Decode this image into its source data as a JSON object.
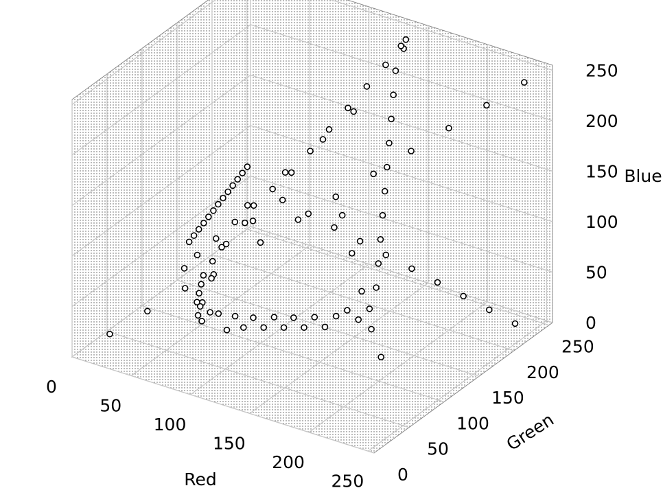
{
  "chart_data": {
    "type": "scatter",
    "projection": "3d",
    "title": "",
    "xlabel": "Red",
    "ylabel": "Green",
    "zlabel": "Blue",
    "xlim": [
      0,
      255
    ],
    "ylim": [
      0,
      255
    ],
    "zlim": [
      0,
      255
    ],
    "x_ticks": [
      "0",
      "50",
      "100",
      "150",
      "200",
      "250"
    ],
    "y_ticks": [
      "0",
      "50",
      "100",
      "150",
      "200",
      "250"
    ],
    "z_ticks": [
      "0",
      "50",
      "100",
      "150",
      "200",
      "250"
    ],
    "grid": true,
    "legend": "none",
    "colors": {
      "pane": "#f0f0f0",
      "grid": "#c8c8c8",
      "points": "#000000",
      "background": "#ffffff"
    },
    "series": [
      {
        "points": [
          [
            5,
            250,
            10
          ],
          [
            10,
            230,
            20
          ],
          [
            12,
            200,
            15
          ],
          [
            20,
            180,
            25
          ],
          [
            25,
            160,
            10
          ],
          [
            30,
            150,
            30
          ],
          [
            35,
            140,
            20
          ],
          [
            40,
            120,
            35
          ],
          [
            45,
            110,
            15
          ],
          [
            50,
            100,
            40
          ],
          [
            55,
            90,
            25
          ],
          [
            60,
            80,
            45
          ],
          [
            65,
            70,
            30
          ],
          [
            70,
            60,
            50
          ],
          [
            80,
            50,
            40
          ],
          [
            90,
            45,
            55
          ],
          [
            100,
            40,
            60
          ],
          [
            110,
            35,
            50
          ],
          [
            120,
            30,
            70
          ],
          [
            130,
            25,
            65
          ],
          [
            140,
            22,
            80
          ],
          [
            150,
            20,
            75
          ],
          [
            160,
            18,
            90
          ],
          [
            170,
            15,
            85
          ],
          [
            180,
            12,
            100
          ],
          [
            190,
            10,
            95
          ],
          [
            200,
            8,
            110
          ],
          [
            210,
            6,
            105
          ],
          [
            220,
            5,
            120
          ],
          [
            230,
            4,
            130
          ],
          [
            240,
            3,
            125
          ],
          [
            250,
            2,
            140
          ],
          [
            245,
            20,
            150
          ],
          [
            235,
            40,
            160
          ],
          [
            225,
            60,
            170
          ],
          [
            215,
            80,
            180
          ],
          [
            205,
            100,
            190
          ],
          [
            195,
            120,
            200
          ],
          [
            185,
            140,
            210
          ],
          [
            175,
            160,
            220
          ],
          [
            165,
            180,
            230
          ],
          [
            155,
            200,
            240
          ],
          [
            150,
            220,
            250
          ],
          [
            140,
            240,
            245
          ],
          [
            130,
            250,
            230
          ],
          [
            120,
            245,
            210
          ],
          [
            110,
            235,
            190
          ],
          [
            100,
            225,
            170
          ],
          [
            90,
            215,
            150
          ],
          [
            80,
            205,
            130
          ],
          [
            70,
            195,
            110
          ],
          [
            60,
            185,
            95
          ],
          [
            50,
            175,
            80
          ],
          [
            40,
            165,
            65
          ],
          [
            30,
            155,
            50
          ],
          [
            20,
            145,
            35
          ],
          [
            15,
            135,
            25
          ],
          [
            25,
            125,
            60
          ],
          [
            35,
            115,
            75
          ],
          [
            45,
            105,
            90
          ],
          [
            55,
            95,
            105
          ],
          [
            65,
            85,
            120
          ],
          [
            75,
            75,
            135
          ],
          [
            85,
            65,
            150
          ],
          [
            95,
            55,
            165
          ],
          [
            105,
            45,
            180
          ],
          [
            115,
            35,
            195
          ],
          [
            125,
            25,
            210
          ],
          [
            135,
            15,
            225
          ],
          [
            145,
            5,
            240
          ],
          [
            160,
            30,
            200
          ],
          [
            170,
            50,
            180
          ],
          [
            180,
            70,
            160
          ],
          [
            190,
            90,
            140
          ],
          [
            200,
            110,
            120
          ],
          [
            210,
            130,
            100
          ],
          [
            220,
            150,
            80
          ],
          [
            230,
            170,
            60
          ],
          [
            240,
            190,
            40
          ],
          [
            250,
            210,
            20
          ],
          [
            100,
            100,
            100
          ],
          [
            120,
            120,
            120
          ],
          [
            140,
            140,
            140
          ],
          [
            160,
            160,
            160
          ],
          [
            180,
            180,
            180
          ],
          [
            200,
            200,
            200
          ],
          [
            220,
            220,
            220
          ],
          [
            240,
            240,
            240
          ],
          [
            60,
            60,
            60
          ],
          [
            40,
            40,
            40
          ],
          [
            20,
            20,
            20
          ],
          [
            30,
            200,
            60
          ],
          [
            50,
            220,
            90
          ],
          [
            70,
            240,
            120
          ],
          [
            90,
            250,
            150
          ],
          [
            110,
            200,
            80
          ],
          [
            130,
            180,
            60
          ],
          [
            150,
            160,
            40
          ],
          [
            170,
            140,
            20
          ],
          [
            190,
            120,
            10
          ]
        ]
      }
    ]
  }
}
